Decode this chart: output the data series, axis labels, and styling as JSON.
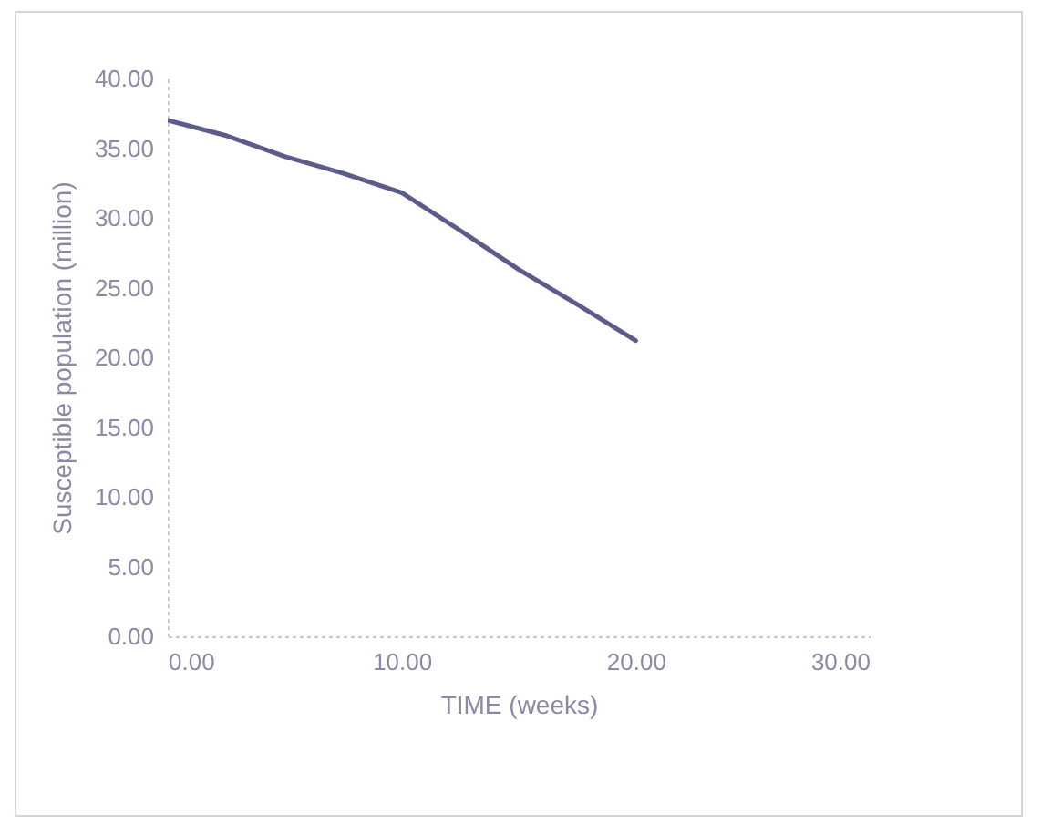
{
  "chart_data": {
    "type": "line",
    "xlabel": "TIME (weeks)",
    "ylabel": "Susceptible population  (million)",
    "x": [
      0,
      2.5,
      5,
      7.5,
      10,
      12.5,
      15,
      17.5,
      20
    ],
    "series": [
      {
        "color": "#5b5b8c",
        "values": [
          37,
          35.9,
          34.4,
          33.2,
          31.8,
          29.1,
          26.3,
          23.8,
          21.2
        ]
      }
    ],
    "xlim": [
      0,
      30
    ],
    "ylim": [
      0,
      40
    ],
    "xticks": [
      {
        "value": 0,
        "label": "0.00"
      },
      {
        "value": 10,
        "label": "10.00"
      },
      {
        "value": 20,
        "label": "20.00"
      },
      {
        "value": 30,
        "label": "30.00"
      }
    ],
    "yticks": [
      {
        "value": 0,
        "label": "0.00"
      },
      {
        "value": 5,
        "label": "5.00"
      },
      {
        "value": 10,
        "label": "10.00"
      },
      {
        "value": 15,
        "label": "15.00"
      },
      {
        "value": 20,
        "label": "20.00"
      },
      {
        "value": 25,
        "label": "25.00"
      },
      {
        "value": 30,
        "label": "30.00"
      },
      {
        "value": 35,
        "label": "35.00"
      },
      {
        "value": 40,
        "label": "40.00"
      }
    ],
    "grid": false,
    "legend": false,
    "marker": "none",
    "line_style": "solid"
  }
}
